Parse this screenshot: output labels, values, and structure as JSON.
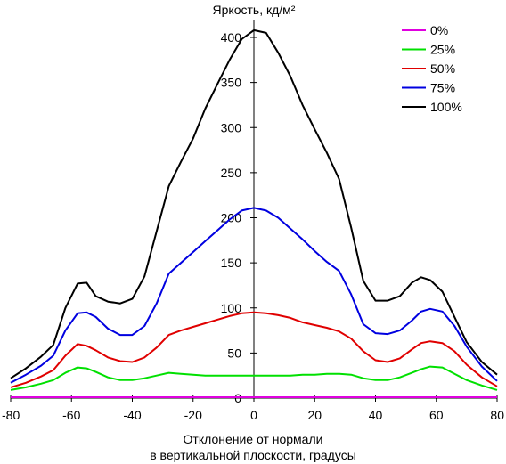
{
  "chart_data": {
    "type": "line",
    "title": "",
    "ylabel": "Яркость, кд/м²",
    "xlabel_line1": "Отклонение от нормали",
    "xlabel_line2": "в вертикальной плоскости, градусы",
    "xlim": [
      -80,
      80
    ],
    "ylim": [
      0,
      400
    ],
    "xticks": [
      -80,
      -60,
      -40,
      -20,
      0,
      20,
      40,
      60,
      80
    ],
    "yticks": [
      0,
      50,
      100,
      150,
      200,
      250,
      300,
      350,
      400
    ],
    "grid": false,
    "legend_position": "top-right",
    "x": [
      -80,
      -75,
      -70,
      -66,
      -62,
      -58,
      -55,
      -52,
      -48,
      -44,
      -40,
      -36,
      -32,
      -28,
      -24,
      -20,
      -16,
      -12,
      -8,
      -4,
      0,
      4,
      8,
      12,
      16,
      20,
      24,
      28,
      32,
      36,
      40,
      44,
      48,
      52,
      55,
      58,
      62,
      66,
      70,
      75,
      80
    ],
    "series": [
      {
        "name": "0%",
        "color": "#e000e0",
        "values": [
          1,
          1,
          1,
          1,
          1,
          1,
          1,
          1,
          1,
          1,
          1,
          1,
          1,
          1,
          1,
          1,
          1,
          1,
          1,
          1,
          1,
          1,
          1,
          1,
          1,
          1,
          1,
          1,
          1,
          1,
          1,
          1,
          1,
          1,
          1,
          1,
          1,
          1,
          1,
          1,
          1
        ]
      },
      {
        "name": "25%",
        "color": "#00e000",
        "values": [
          9,
          12,
          16,
          20,
          28,
          34,
          33,
          29,
          23,
          20,
          20,
          22,
          25,
          28,
          27,
          26,
          25,
          25,
          25,
          25,
          25,
          25,
          25,
          25,
          26,
          26,
          27,
          27,
          26,
          22,
          20,
          20,
          23,
          28,
          32,
          35,
          34,
          27,
          20,
          14,
          9
        ]
      },
      {
        "name": "50%",
        "color": "#e00000",
        "values": [
          12,
          17,
          24,
          31,
          47,
          60,
          58,
          53,
          45,
          41,
          40,
          45,
          56,
          70,
          75,
          79,
          83,
          87,
          91,
          94,
          95,
          94,
          92,
          89,
          84,
          81,
          78,
          74,
          66,
          52,
          42,
          40,
          44,
          54,
          61,
          63,
          61,
          52,
          37,
          23,
          13
        ]
      },
      {
        "name": "75%",
        "color": "#0000e0",
        "values": [
          17,
          26,
          36,
          47,
          75,
          94,
          95,
          90,
          77,
          70,
          70,
          80,
          105,
          138,
          150,
          162,
          174,
          186,
          198,
          208,
          211,
          208,
          200,
          188,
          176,
          163,
          151,
          141,
          115,
          82,
          72,
          71,
          75,
          86,
          96,
          99,
          96,
          80,
          57,
          35,
          19
        ]
      },
      {
        "name": "100%",
        "color": "#000000",
        "values": [
          22,
          33,
          46,
          59,
          100,
          127,
          128,
          113,
          107,
          105,
          110,
          135,
          185,
          235,
          262,
          288,
          321,
          348,
          375,
          398,
          408,
          405,
          383,
          357,
          325,
          298,
          272,
          243,
          189,
          130,
          108,
          108,
          113,
          128,
          134,
          131,
          118,
          90,
          62,
          40,
          26
        ]
      }
    ]
  }
}
